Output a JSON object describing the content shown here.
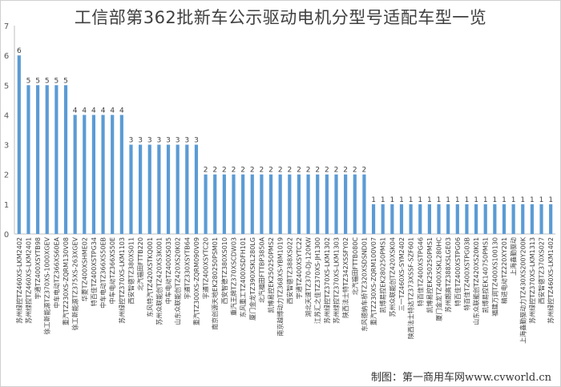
{
  "chart_data": {
    "type": "bar",
    "title": "工信部第362批新车公示驱动电机分型号适配车型一览",
    "xlabel": "",
    "ylabel": "",
    "ylim": [
      0,
      7
    ],
    "yticks": [
      0,
      1,
      2,
      3,
      4,
      5,
      6,
      7
    ],
    "grid": false,
    "legend": "none",
    "bar_color": "#5b9bd5",
    "categories": [
      "苏州绿控TZ460XS-LKM2402",
      "苏州绿控TZ460XS-LKM2401",
      "宇通TZ400XSYTB98",
      "徐工新能源TZ370XS-1000XGEV",
      "中车电动TZ366XS60EA",
      "重汽TZ230XS-ZQRM130V08",
      "徐工新能源TZ375XS-263XGEV",
      "华菱TZ400XSHME02",
      "特百佳TZ400XSTPG34",
      "中车电动TZ366XS50EB",
      "中车电动TZ366XS50E",
      "苏州绿控TZ370XS-LKM1103",
      "西安智德TZ380XS011",
      "北汽福田FTTB220",
      "东风特汽TZ420XSTKQ001",
      "苏州众联能创TZ420XS3K001",
      "中车电动TZ400XS035",
      "山东众联能创TZ420XS20K02",
      "宇通TZ330XSYTB64",
      "重汽TZ300XS-ZQRM090V09",
      "宇通TZ400XSYTC20",
      "南京创源天地EK280250PSM01",
      "西安智德TZ380XS010",
      "重汽王牌TZ370XSCDW03",
      "东风重工TZ400XSDFH101",
      "厦门金龙TZ390XSKL280LG",
      "北汽福田FTTBP3850A",
      "凯博易控EK250250PMS2",
      "南京越博动力TZ368XS-YBM1019",
      "西安智德TZ388XS022",
      "宇通TZ400XSYTC22",
      "湖北天速TZ370-DJ-120KW",
      "江苏汇之佳TZ370XS-JH1300",
      "苏州绿控TZ370XS-LKM1302",
      "苏州绿控TZ370XS-LKM1303",
      "陕西法士特TZ342XSSFY02",
      "北汽福田FTTB080C",
      "东风德纳车桥TZ320XSDSND01",
      "重汽TZ230XS-ZQRM100V07",
      "凯博易控EK280250PMS1",
      "苏州众联能创TZ420XSK04",
      "三一TZ460XS-SYM2402",
      "陕西法士特达TZ373XSSF-SZF601",
      "特百佳TZ400XSTPG46",
      "凯博易控EK250250PMS1",
      "厦门金龙TZ400XSKL280HC",
      "苏州朗高TZ388XSLGE03",
      "特百佳TZ400XSTPG06",
      "特百佳TZ400XSTPG03B",
      "山东众联能创TZ420XS20K01",
      "凯博易控EK140750PMS1",
      "福建万润TZ400XS100130",
      "精进电动TZ220XY201",
      "上海鑫勤驱动",
      "上海鑫勤驱动力TZ430XS200Y200K",
      "苏州绿控TZ370XS-LKM1313",
      "西安智德TZ370XS027",
      "苏州绿控TZ460XS-LKM1402"
    ],
    "values": [
      6,
      5,
      5,
      5,
      5,
      5,
      4,
      4,
      4,
      4,
      4,
      4,
      3,
      3,
      3,
      3,
      3,
      3,
      3,
      3,
      2,
      2,
      2,
      2,
      2,
      2,
      2,
      2,
      2,
      2,
      2,
      2,
      2,
      2,
      2,
      2,
      2,
      2,
      1,
      1,
      1,
      1,
      1,
      1,
      1,
      1,
      1,
      1,
      1,
      1,
      1,
      1,
      1,
      1,
      1,
      1,
      1,
      1
    ]
  },
  "credit": "制图：第一商用车网www.cvworld.cn"
}
